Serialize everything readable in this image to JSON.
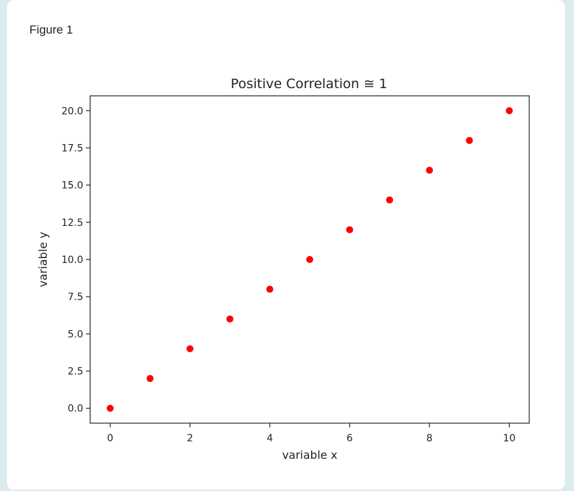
{
  "figure": {
    "label": "Figure 1"
  },
  "colors": {
    "marker": "#ff0000",
    "axes": "#222222",
    "page_background": "#dcecec",
    "card_background": "#ffffff"
  },
  "chart_data": {
    "type": "scatter",
    "title": "Positive Correlation ≅ 1",
    "xlabel": "variable x",
    "ylabel": "variable y",
    "xlim": [
      -0.5,
      10.5
    ],
    "ylim": [
      -1.0,
      21.0
    ],
    "xticks": [
      0,
      2,
      4,
      6,
      8,
      10
    ],
    "xtick_labels": [
      "0",
      "2",
      "4",
      "6",
      "8",
      "10"
    ],
    "yticks": [
      0,
      2.5,
      5,
      7.5,
      10,
      12.5,
      15,
      17.5,
      20
    ],
    "ytick_labels": [
      "0.0",
      "2.5",
      "5.0",
      "7.5",
      "10.0",
      "12.5",
      "15.0",
      "17.5",
      "20.0"
    ],
    "grid": false,
    "legend": "none",
    "series": [
      {
        "color": "#ff0000",
        "x": [
          0,
          1,
          2,
          3,
          4,
          5,
          6,
          7,
          8,
          9,
          10
        ],
        "y": [
          0,
          2,
          4,
          6,
          8,
          10,
          12,
          14,
          16,
          18,
          20
        ]
      }
    ]
  }
}
